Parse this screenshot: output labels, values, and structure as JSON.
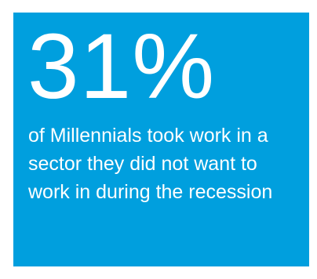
{
  "colors": {
    "card_background": "#009fde",
    "text": "#ffffff"
  },
  "stat": {
    "value": "31%",
    "caption": "of Millennials took work in a sector they did not want to work in during the recession"
  }
}
